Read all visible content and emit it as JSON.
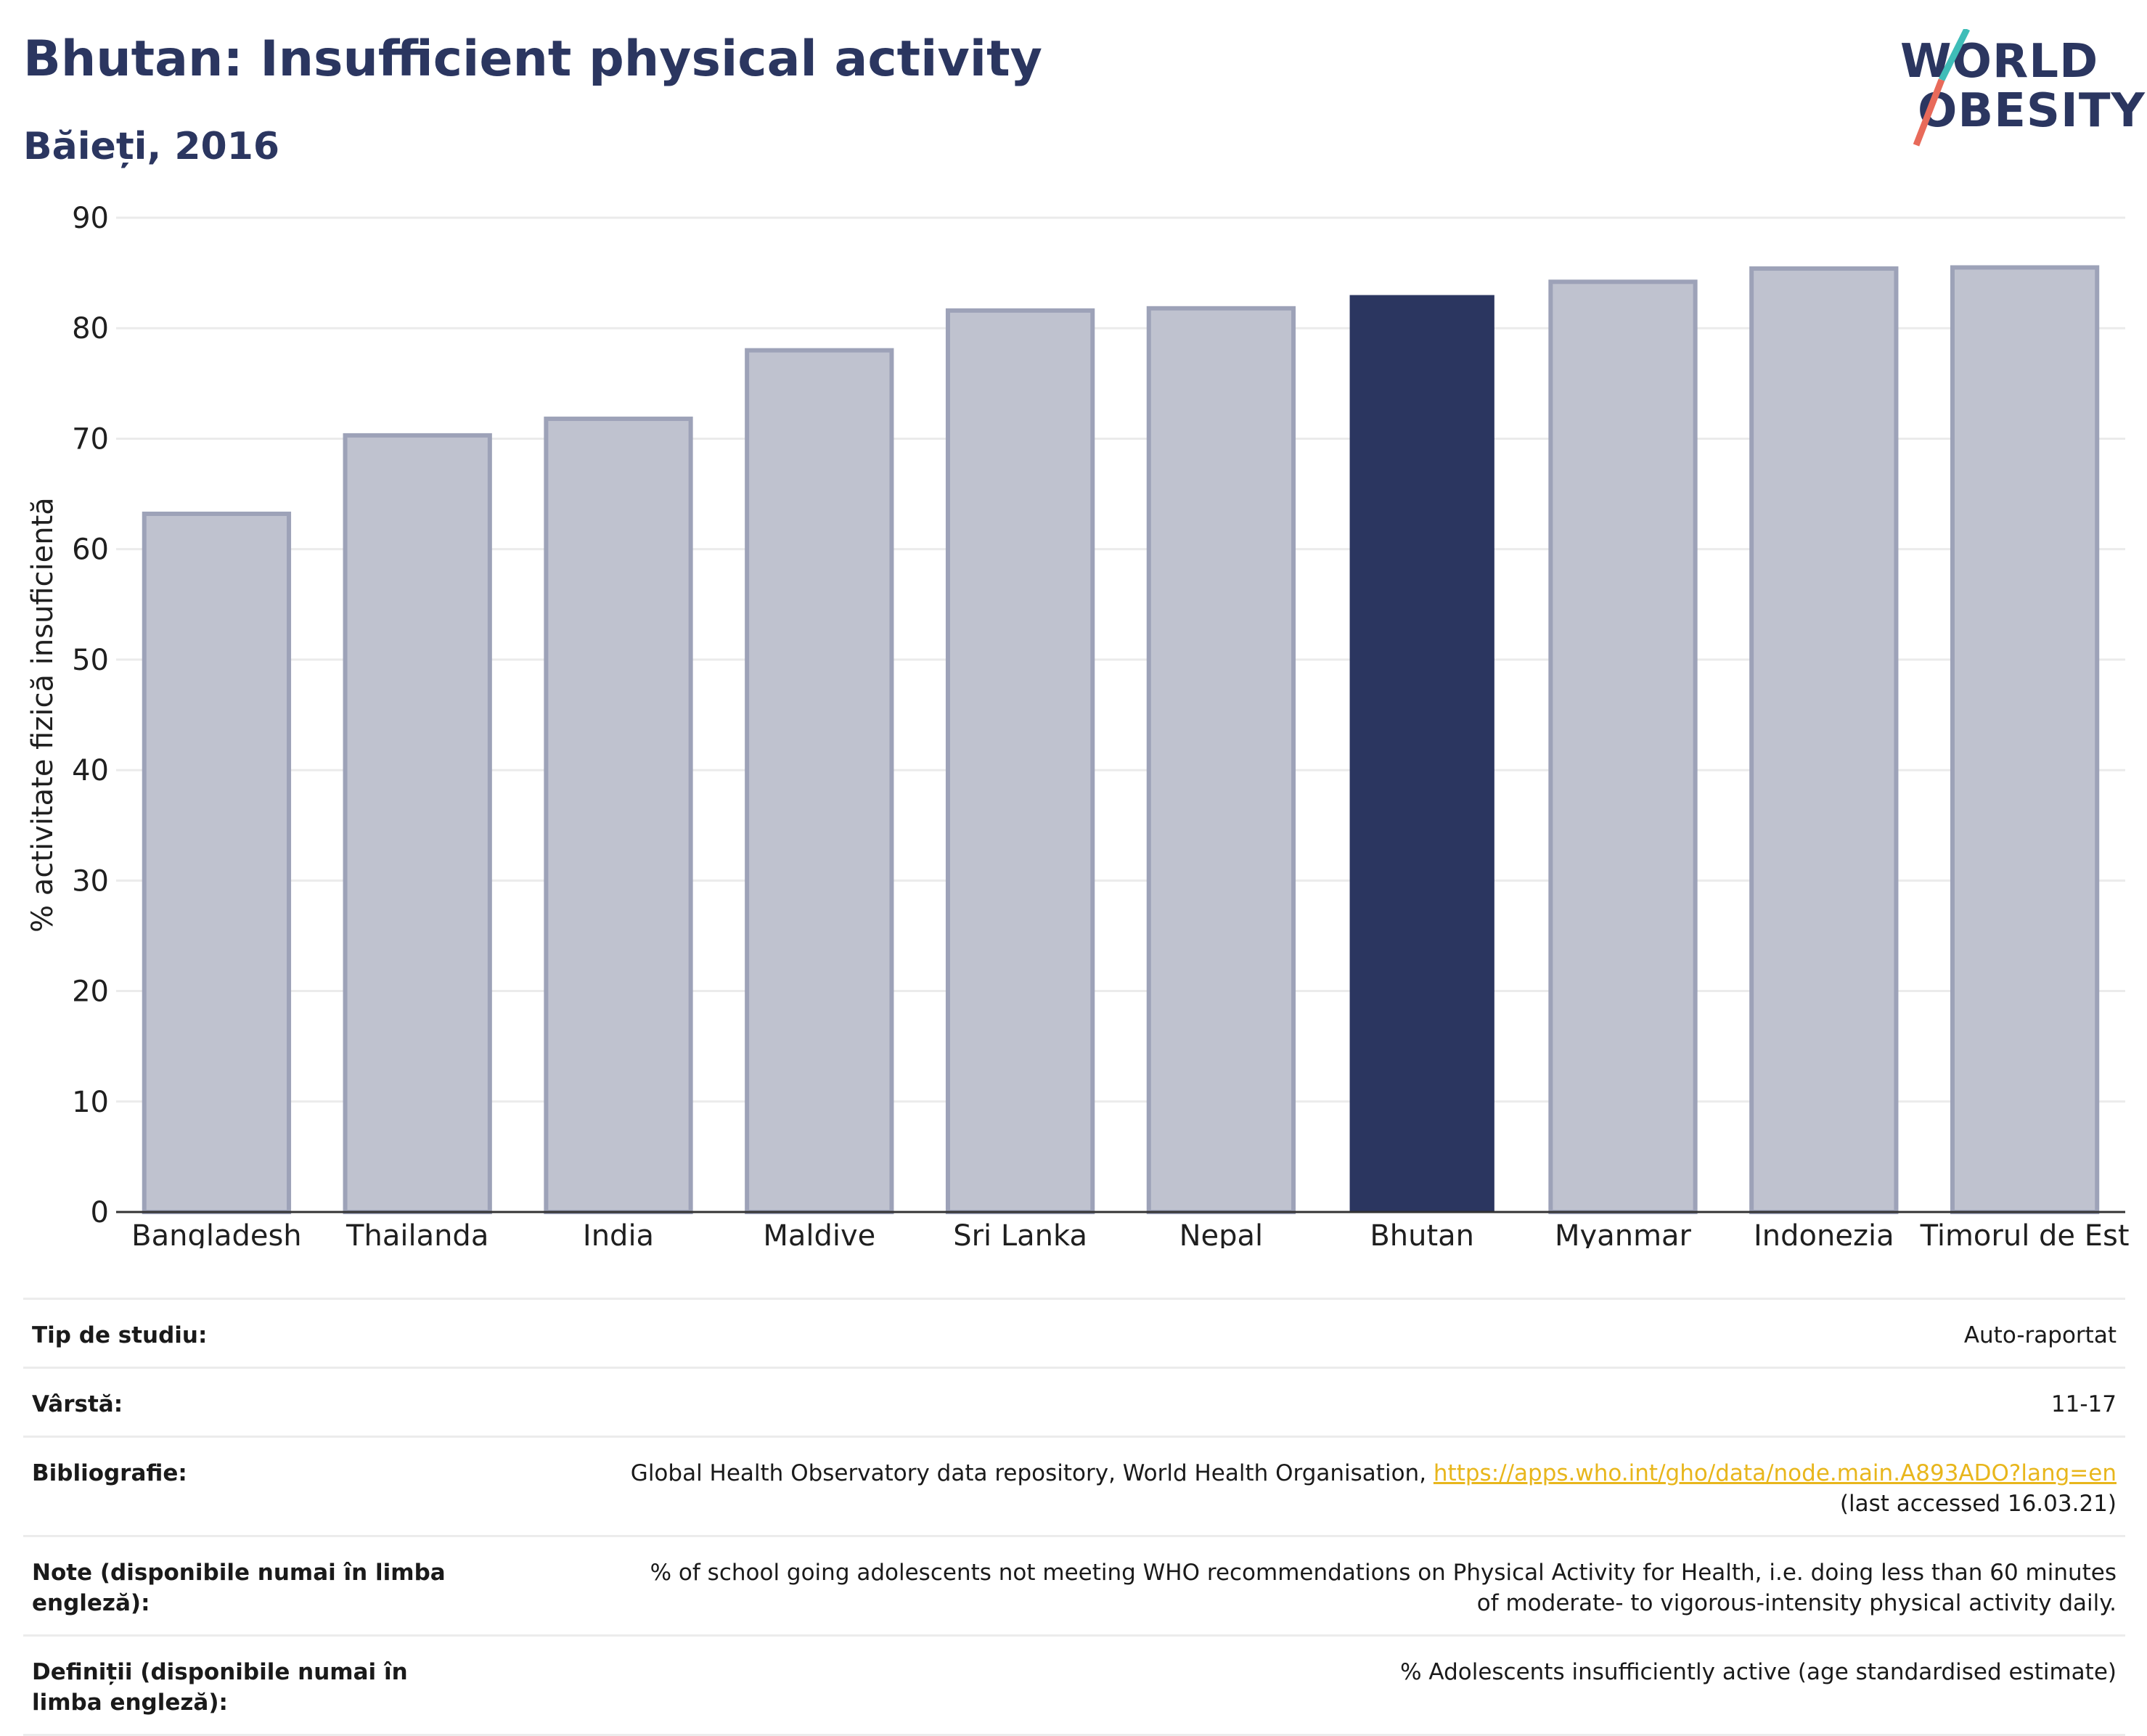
{
  "header": {
    "title": "Bhutan: Insufficient physical activity",
    "subtitle": "Băieți, 2016"
  },
  "logo": {
    "line1": "WORLD",
    "line2": "OBESITY",
    "slash_color_top": "#3fbdb8",
    "slash_color_bottom": "#e86a5a"
  },
  "colors": {
    "highlight": "#2b3660",
    "other": "#bfc2cf",
    "other_border": "#9da2b8",
    "grid": "#ebebeb"
  },
  "chart_data": {
    "type": "bar",
    "title": "Bhutan: Insufficient physical activity",
    "subtitle": "Băieți, 2016",
    "xlabel": "",
    "ylabel": "% activitate fizică insuficientă",
    "ylim": [
      0,
      90
    ],
    "yticks": [
      0,
      10,
      20,
      30,
      40,
      50,
      60,
      70,
      80,
      90
    ],
    "grid": true,
    "categories": [
      "Bangladesh",
      "Thailanda",
      "India",
      "Maldive",
      "Sri Lanka",
      "Nepal",
      "Bhutan",
      "Myanmar",
      "Indonezia",
      "Timorul de Est"
    ],
    "values": [
      63.2,
      70.3,
      71.8,
      78.0,
      81.6,
      81.8,
      83.0,
      84.2,
      85.4,
      85.5
    ],
    "highlight": "Bhutan"
  },
  "info": {
    "rows": [
      {
        "key": "Tip de studiu:",
        "value": "Auto-raportat"
      },
      {
        "key": "Vârstă:",
        "value": "11-17"
      },
      {
        "key": "Bibliografie:",
        "value": "Global Health Observatory data repository, World Health Organisation, ",
        "link": "https://apps.who.int/gho/data/node.main.A893ADO?lang=en",
        "value_after": "(last accessed 16.03.21)"
      },
      {
        "key": "Note (disponibile numai în limba engleză):",
        "value": "% of school going adolescents not meeting WHO recommendations on Physical Activity for Health, i.e. doing less than 60 minutes of moderate- to vigorous-intensity physical activity daily."
      },
      {
        "key": "Definiții (disponibile numai în limba engleză):",
        "value": "% Adolescents insufficiently active (age standardised estimate)"
      }
    ]
  }
}
